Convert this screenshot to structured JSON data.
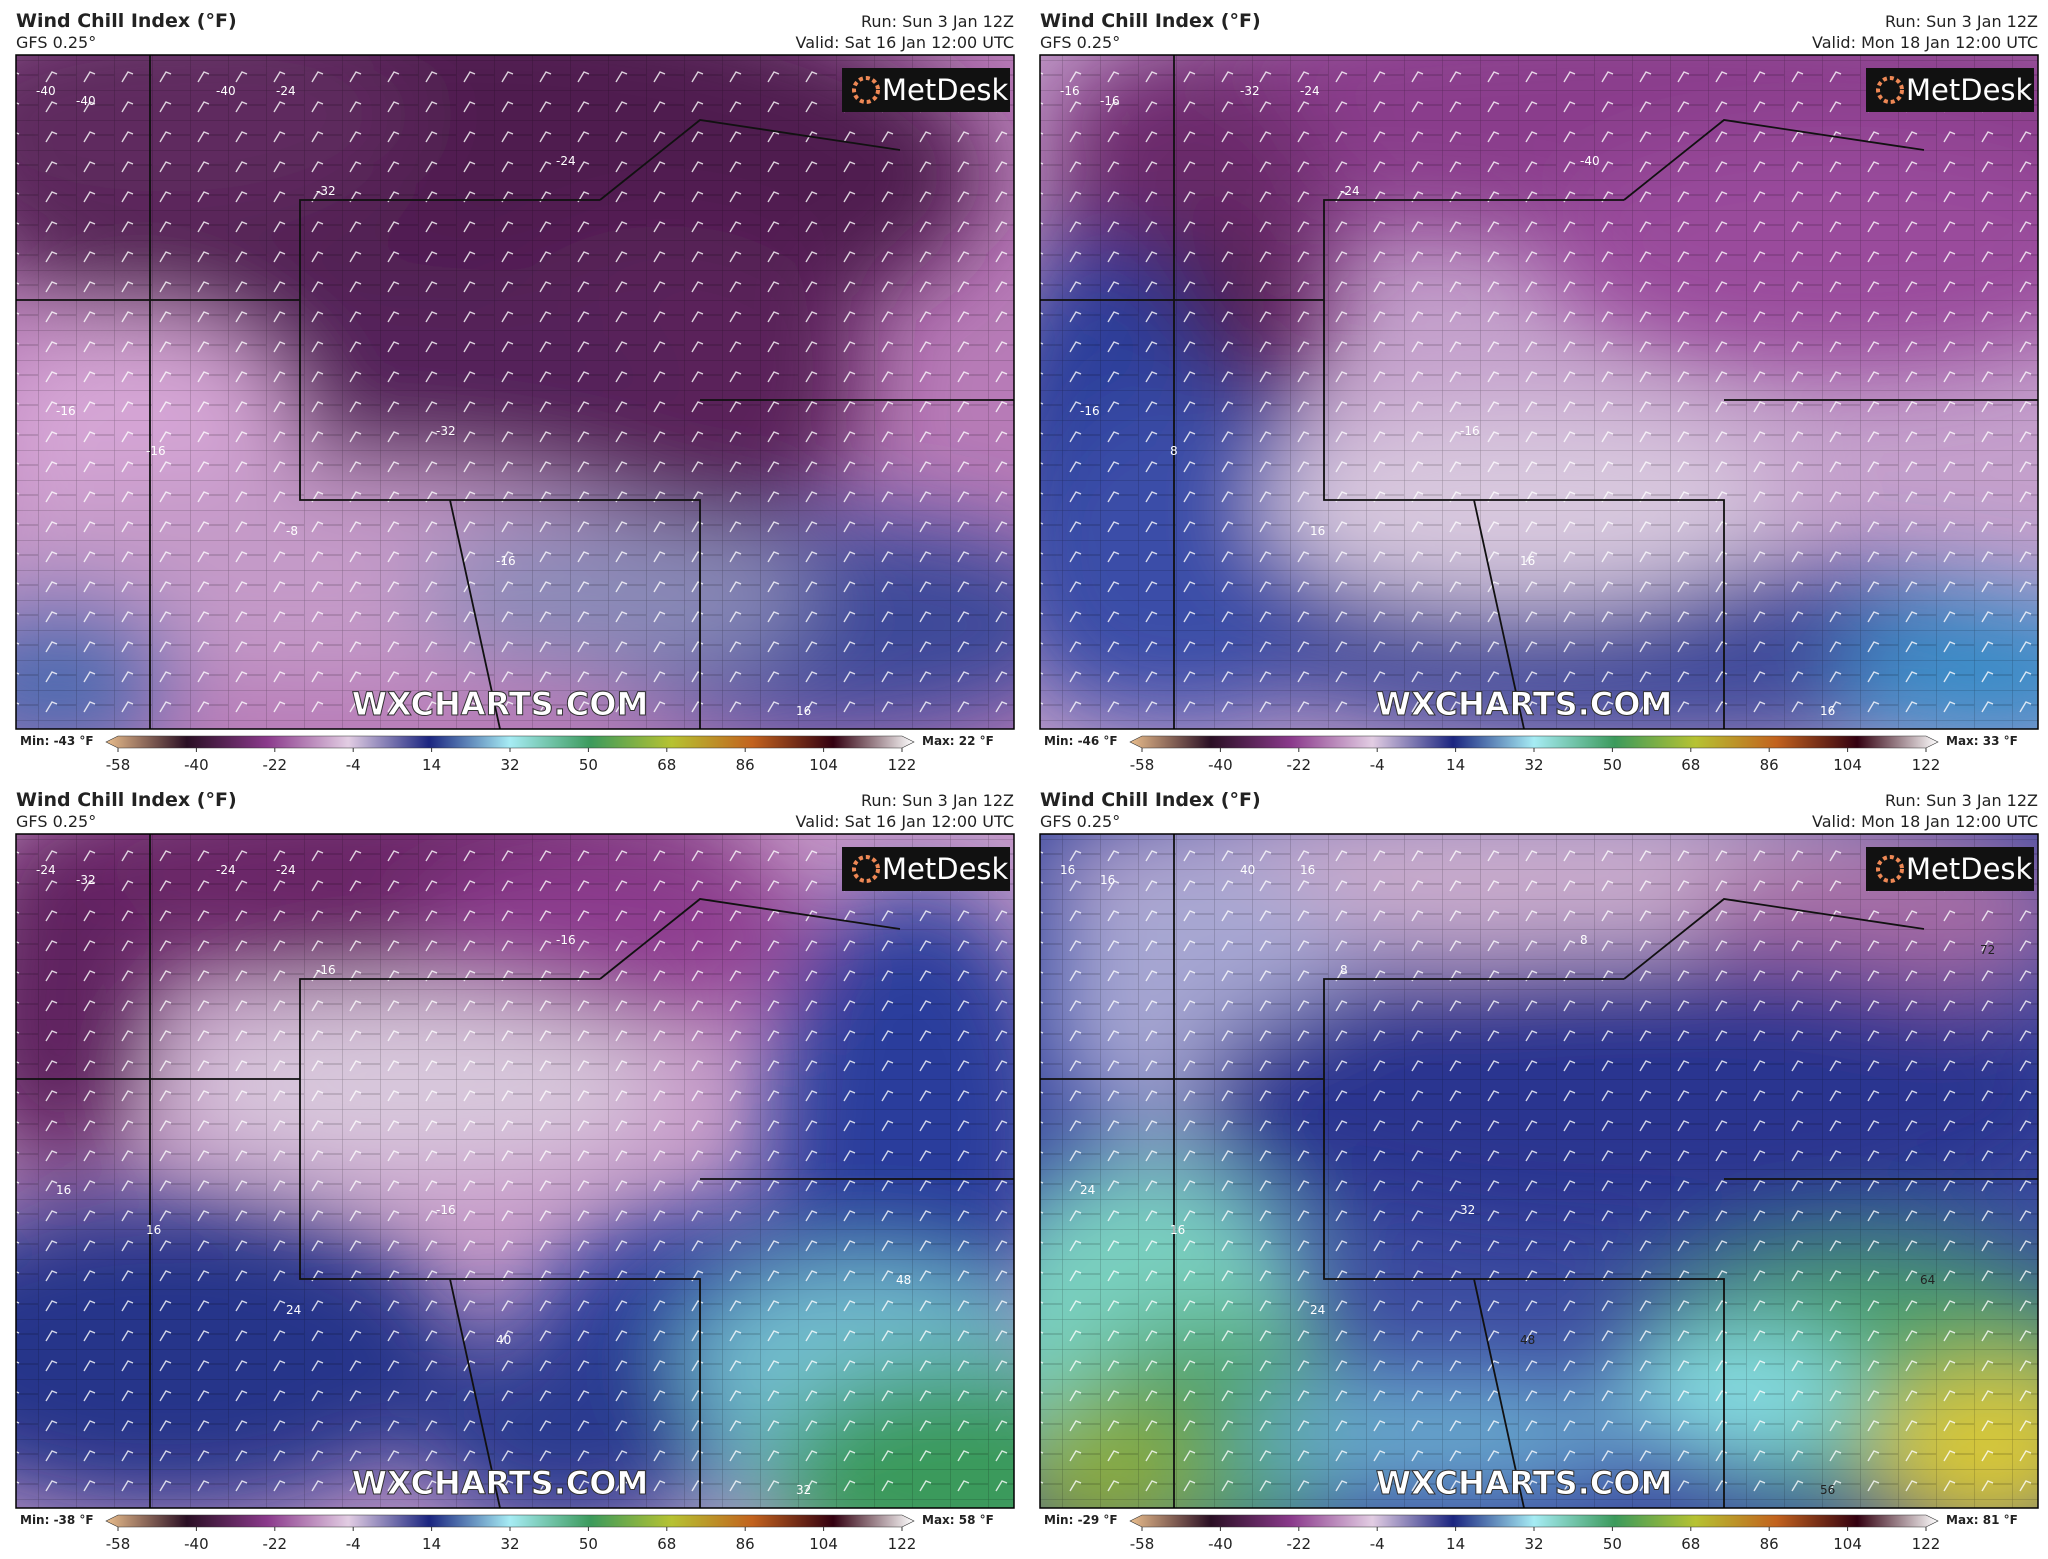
{
  "colorbar": {
    "ticks": [
      -58,
      -40,
      -22,
      -4,
      14,
      32,
      50,
      68,
      86,
      104,
      122
    ],
    "colors": [
      "#e9bd8c",
      "#2a0f24",
      "#8b3a8c",
      "#e2cde3",
      "#1b2580",
      "#a6ecf4",
      "#3c9a5c",
      "#b6c232",
      "#c2621e",
      "#330010",
      "#ffffff"
    ]
  },
  "panels": [
    {
      "title": "Wind Chill Index (°F)",
      "model": "GFS 0.25°",
      "run": "Run: Sun 3 Jan 12Z",
      "valid": "Valid: Sat 16 Jan 12:00 UTC",
      "min": "Min: -43 °F",
      "max": "Max: 22 °F",
      "logo": "MetDesk",
      "watermark": "WXCHARTS.COM",
      "contour_labels": [
        -40,
        -40,
        -24,
        -32,
        -24,
        -40,
        -32,
        -16,
        -16,
        -8,
        -16,
        16
      ]
    },
    {
      "title": "Wind Chill Index (°F)",
      "model": "GFS 0.25°",
      "run": "Run: Sun 3 Jan 12Z",
      "valid": "Valid: Mon 18 Jan 12:00 UTC",
      "min": "Min: -46 °F",
      "max": "Max: 33 °F",
      "logo": "MetDesk",
      "watermark": "WXCHARTS.COM",
      "contour_labels": [
        -16,
        -16,
        -24,
        -24,
        -40,
        -32,
        -16,
        -16,
        8,
        16,
        16,
        16
      ]
    },
    {
      "title": "Wind Chill Index (°F)",
      "model": "GFS 0.25°",
      "run": "Run: Sun 3 Jan 12Z",
      "valid": "Valid: Sat 16 Jan 12:00 UTC",
      "min": "Min: -38 °F",
      "max": "Max: 58 °F",
      "logo": "MetDesk",
      "watermark": "WXCHARTS.COM",
      "contour_labels": [
        -24,
        -32,
        -24,
        -16,
        -16,
        -24,
        -16,
        16,
        16,
        24,
        40,
        32,
        48
      ]
    },
    {
      "title": "Wind Chill Index (°F)",
      "model": "GFS 0.25°",
      "run": "Run: Sun 3 Jan 12Z",
      "valid": "Valid: Mon 18 Jan 12:00 UTC",
      "min": "Min: -29 °F",
      "max": "Max: 81 °F",
      "logo": "MetDesk",
      "watermark": "WXCHARTS.COM",
      "contour_labels": [
        16,
        16,
        16,
        8,
        8,
        40,
        32,
        24,
        16,
        24,
        48,
        56,
        64,
        72
      ]
    }
  ]
}
